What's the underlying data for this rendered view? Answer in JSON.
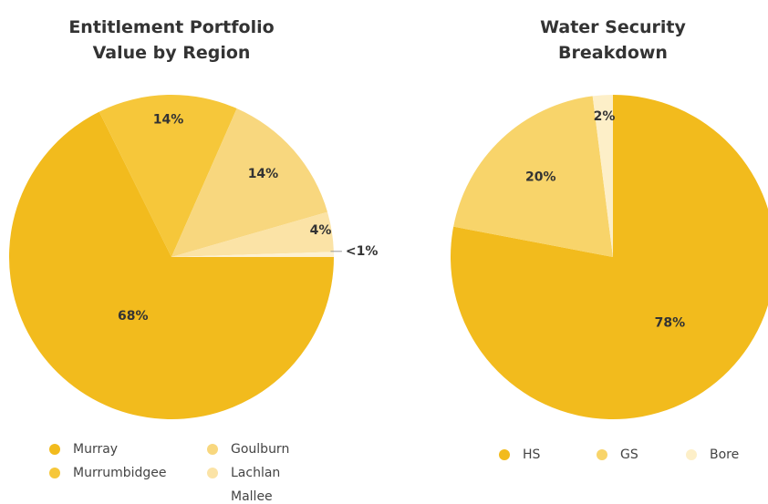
{
  "chart_data": [
    {
      "type": "pie",
      "title": "Entitlement Portfolio Value by Region",
      "categories": [
        "Murray",
        "Murrumbidgee",
        "Goulburn",
        "Lachlan",
        "Mallee"
      ],
      "values": [
        68,
        14,
        14,
        4,
        0.5
      ],
      "value_labels": [
        "68%",
        "14%",
        "14%",
        "4%",
        "<1%"
      ],
      "colors": [
        "#f2bb1d",
        "#f6c73a",
        "#f8d77e",
        "#fbe3a6",
        "#fdf1d2"
      ],
      "start": "east"
    },
    {
      "type": "pie",
      "title": "Water Security Breakdown",
      "categories": [
        "HS",
        "GS",
        "Bore"
      ],
      "values": [
        78,
        20,
        2
      ],
      "value_labels": [
        "78%",
        "20%",
        "2%"
      ],
      "colors": [
        "#f2bb1d",
        "#f8d46a",
        "#fdefc8"
      ],
      "start": "north"
    }
  ]
}
